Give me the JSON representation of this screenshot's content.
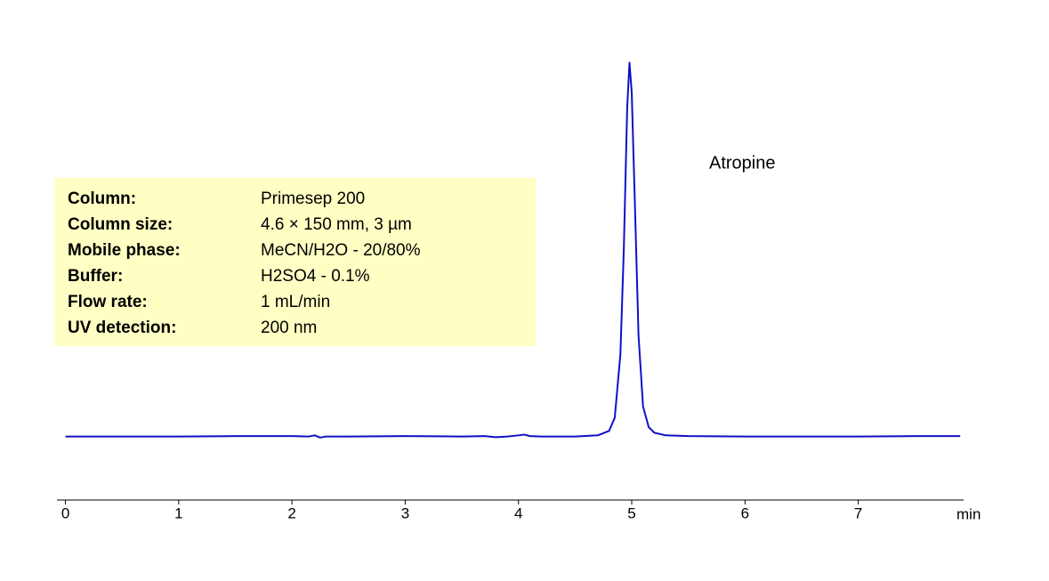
{
  "chart_data": {
    "type": "line",
    "x": [
      0,
      0.5,
      1,
      1.5,
      2,
      2.15,
      2.2,
      2.25,
      2.3,
      2.5,
      3,
      3.5,
      3.7,
      3.8,
      3.9,
      4.0,
      4.05,
      4.1,
      4.2,
      4.5,
      4.7,
      4.8,
      4.85,
      4.9,
      4.93,
      4.96,
      4.98,
      5.0,
      5.03,
      5.06,
      5.1,
      5.15,
      5.2,
      5.3,
      5.5,
      6,
      6.5,
      7,
      7.5,
      7.9
    ],
    "values": [
      0,
      0,
      0,
      0.1,
      0.1,
      0,
      0.3,
      -0.3,
      0,
      0,
      0.1,
      0,
      0.1,
      -0.2,
      0,
      0.3,
      0.5,
      0.1,
      0,
      0,
      0.3,
      1.5,
      5,
      22,
      50,
      88,
      100,
      92,
      60,
      27,
      8,
      2.5,
      1,
      0.3,
      0.1,
      0,
      0,
      0,
      0.1,
      0.1
    ],
    "color": "#1010c8",
    "xlim": [
      -0.075,
      7.93
    ],
    "xticks": [
      0,
      1,
      2,
      3,
      4,
      5,
      6,
      7
    ],
    "x_label": "min",
    "ylim": [
      -17,
      102
    ],
    "annotation": "Atropine",
    "conditions": [
      {
        "label": "Column:",
        "value": "Primesep 200"
      },
      {
        "label": "Column size:",
        "value": "4.6 × 150 mm, 3 µm"
      },
      {
        "label": "Mobile phase:",
        "value": "MeCN/H2O - 20/80%"
      },
      {
        "label": "Buffer:",
        "value": "H2SO4  - 0.1%"
      },
      {
        "label": "Flow rate:",
        "value": "1 mL/min"
      },
      {
        "label": "UV detection:",
        "value": "200 nm"
      }
    ]
  }
}
